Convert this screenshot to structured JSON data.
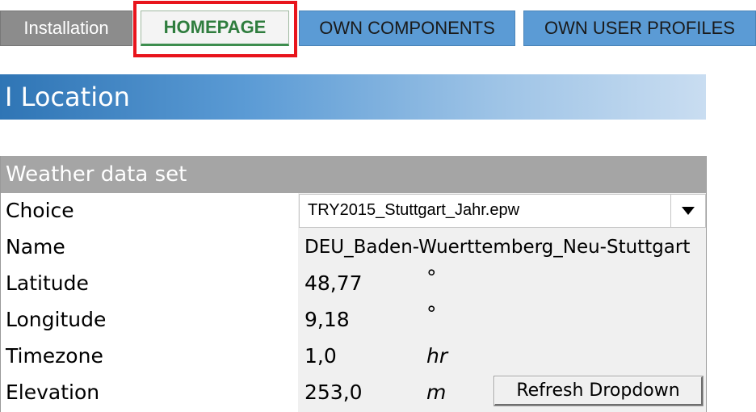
{
  "tabs": [
    {
      "label": "Installation"
    },
    {
      "label": "HOMEPAGE"
    },
    {
      "label": "OWN COMPONENTS"
    },
    {
      "label": "OWN USER PROFILES"
    }
  ],
  "section": {
    "title": "I Location"
  },
  "weather": {
    "title": "Weather data set",
    "choice": {
      "label": "Choice",
      "value": "TRY2015_Stuttgart_Jahr.epw"
    },
    "name": {
      "label": "Name",
      "value": "DEU_Baden-Wuerttemberg_Neu-Stuttgart"
    },
    "latitude": {
      "label": "Latitude",
      "value": "48,77",
      "unit": "°"
    },
    "longitude": {
      "label": "Longitude",
      "value": "9,18",
      "unit": "°"
    },
    "timezone": {
      "label": "Timezone",
      "value": "1,0",
      "unit": "hr"
    },
    "elevation": {
      "label": "Elevation",
      "value": "253,0",
      "unit": "m"
    },
    "refresh_label": "Refresh Dropdown"
  },
  "colors": {
    "highlight": "#e8141c",
    "tab_active_text": "#2f7d3e",
    "tab_blue": "#5b9bd5",
    "tab_gray": "#8c8c8c",
    "header_blue": "#2f75b5",
    "panel_header": "#a5a5a5"
  },
  "icons": {
    "dropdown": "triangle-down-icon"
  }
}
